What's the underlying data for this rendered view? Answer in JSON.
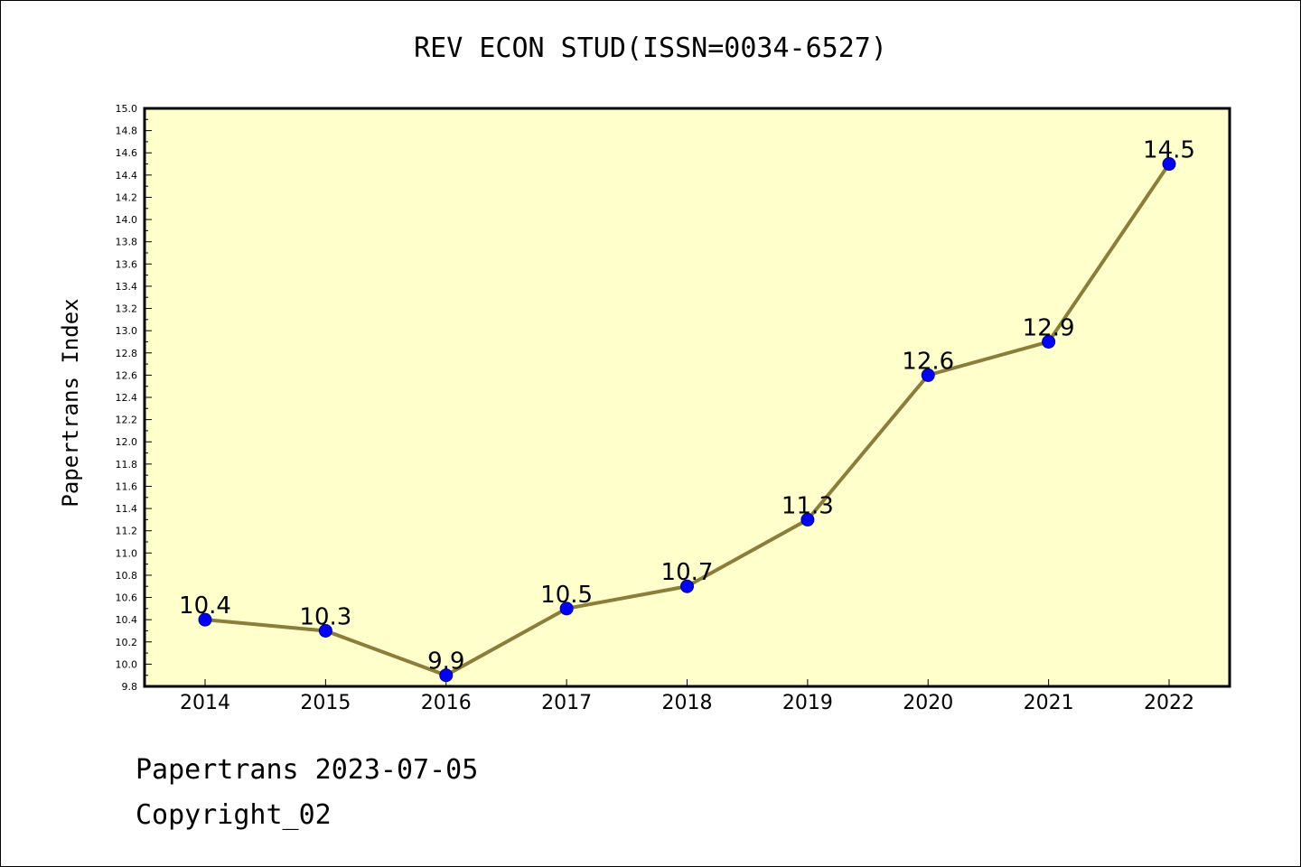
{
  "chart_data": {
    "type": "line",
    "title": "REV ECON STUD(ISSN=0034-6527)",
    "xlabel": "",
    "ylabel": "Papertrans Index",
    "categories": [
      "2014",
      "2015",
      "2016",
      "2017",
      "2018",
      "2019",
      "2020",
      "2021",
      "2022"
    ],
    "series": [
      {
        "values": [
          10.4,
          10.3,
          9.9,
          10.5,
          10.7,
          11.3,
          12.6,
          12.9,
          14.5
        ],
        "labels": [
          "10.4",
          "10.3",
          "9.9",
          "10.5",
          "10.7",
          "11.3",
          "12.6",
          "12.9",
          "14.5"
        ]
      }
    ],
    "ylim": [
      9.8,
      15.0
    ],
    "yticks": [
      "9.8",
      "10.0",
      "10.2",
      "10.4",
      "10.6",
      "10.8",
      "11.0",
      "11.2",
      "11.4",
      "11.6",
      "11.8",
      "12.0",
      "12.2",
      "12.4",
      "12.6",
      "12.8",
      "13.0",
      "13.2",
      "13.4",
      "13.6",
      "13.8",
      "14.0",
      "14.2",
      "14.4",
      "14.6",
      "14.8",
      "15.0"
    ],
    "grid": false,
    "legend": "none",
    "colors": {
      "plot_background": "#ffffcc",
      "line": "#8b7d3a",
      "marker": "#0000ff",
      "marker_edge": "#00008b"
    }
  },
  "footer": {
    "line1": "Papertrans 2023-07-05",
    "line2": "Copyright_02"
  }
}
